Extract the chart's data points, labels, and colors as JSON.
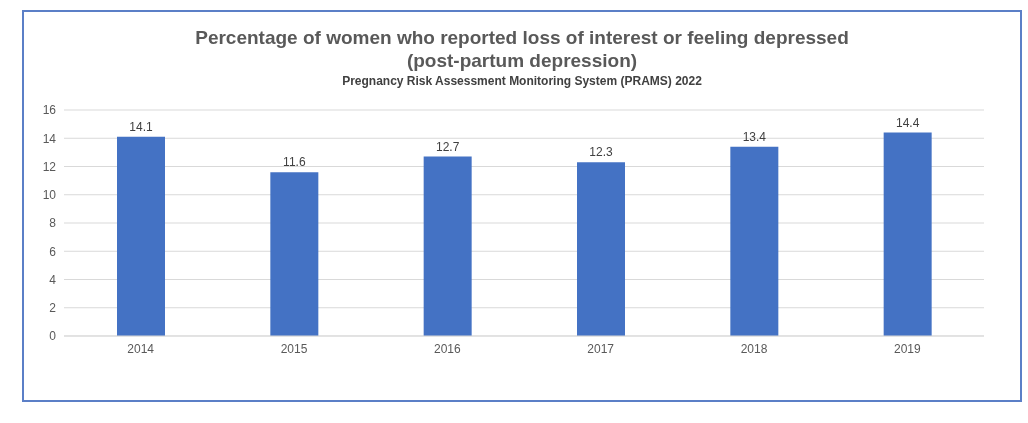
{
  "chart_data": {
    "type": "bar",
    "title": "Percentage of women who reported loss of interest or feeling depressed (post-partum depression)",
    "subtitle": "Pregnancy Risk Assessment Monitoring System (PRAMS) 2022",
    "categories": [
      "2014",
      "2015",
      "2016",
      "2017",
      "2018",
      "2019"
    ],
    "values": [
      14.1,
      11.6,
      12.7,
      12.3,
      13.4,
      14.4
    ],
    "color": "#4472c4",
    "ylim": [
      0,
      16
    ],
    "yticks": [
      0,
      2,
      4,
      6,
      8,
      10,
      12,
      14,
      16
    ],
    "grid": "y",
    "data_labels": true,
    "legend": false
  }
}
